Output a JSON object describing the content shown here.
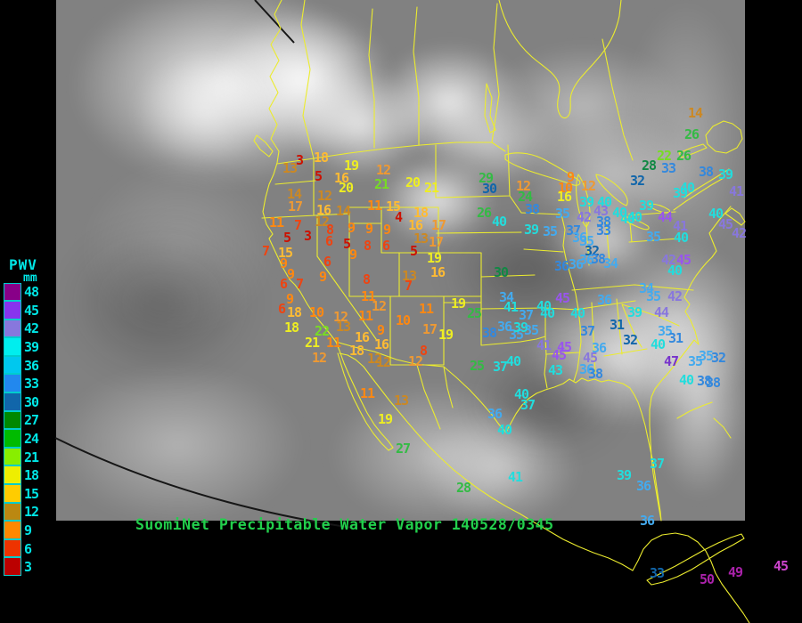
{
  "header": {
    "title": "SuomiNet Precipitable Water Vapor 140528/0345",
    "title_color": "#22cf4c"
  },
  "legend": {
    "title": "PWV",
    "unit": "mm",
    "label_color": "#00e6e6",
    "entries": [
      {
        "value": "48",
        "color": "#880088"
      },
      {
        "value": "45",
        "color": "#8833ee"
      },
      {
        "value": "42",
        "color": "#8877dd"
      },
      {
        "value": "39",
        "color": "#00eeee"
      },
      {
        "value": "36",
        "color": "#00c8ee"
      },
      {
        "value": "33",
        "color": "#2288ee"
      },
      {
        "value": "30",
        "color": "#1166aa"
      },
      {
        "value": "27",
        "color": "#008800"
      },
      {
        "value": "24",
        "color": "#00bb00"
      },
      {
        "value": "21",
        "color": "#88ee00"
      },
      {
        "value": "18",
        "color": "#eeee00"
      },
      {
        "value": "15",
        "color": "#ffcc00"
      },
      {
        "value": "12",
        "color": "#bb8811"
      },
      {
        "value": "9",
        "color": "#ff8800"
      },
      {
        "value": "6",
        "color": "#ee3300"
      },
      {
        "value": "3",
        "color": "#bb0000"
      }
    ]
  },
  "map": {
    "palette": {
      "R1": "#cc1100",
      "R2": "#ee4411",
      "O1": "#ff8811",
      "O2": "#ee9933",
      "O3": "#cc8822",
      "Y1": "#eeee22",
      "Y2": "#ffbb33",
      "G1": "#118844",
      "G2": "#33bb44",
      "G3": "#77dd22",
      "B1": "#44aaee",
      "B2": "#3388dd",
      "B3": "#1166aa",
      "C1": "#22dddd",
      "P1": "#9955ee",
      "P2": "#8877dd",
      "P3": "#7733cc",
      "M1": "#aa22aa",
      "M2": "#cc44cc"
    },
    "stations": [
      [
        3,
        336,
        181,
        "R1"
      ],
      [
        13,
        325,
        190,
        "O3"
      ],
      [
        18,
        360,
        178,
        "Y2"
      ],
      [
        5,
        357,
        199,
        "R1"
      ],
      [
        19,
        394,
        187,
        "Y1"
      ],
      [
        16,
        383,
        201,
        "Y2"
      ],
      [
        20,
        388,
        212,
        "Y1"
      ],
      [
        12,
        430,
        192,
        "O2"
      ],
      [
        21,
        428,
        208,
        "G3"
      ],
      [
        20,
        463,
        206,
        "Y1"
      ],
      [
        21,
        484,
        212,
        "Y1"
      ],
      [
        14,
        330,
        219,
        "O3"
      ],
      [
        17,
        331,
        233,
        "O2"
      ],
      [
        12,
        364,
        221,
        "O3"
      ],
      [
        16,
        363,
        237,
        "Y2"
      ],
      [
        14,
        385,
        238,
        "O3"
      ],
      [
        11,
        420,
        232,
        "O1"
      ],
      [
        15,
        441,
        233,
        "Y2"
      ],
      [
        18,
        472,
        240,
        "Y2"
      ],
      [
        4,
        447,
        245,
        "R1"
      ],
      [
        16,
        466,
        254,
        "Y2"
      ],
      [
        17,
        492,
        254,
        "O2"
      ],
      [
        13,
        472,
        269,
        "O3"
      ],
      [
        17,
        489,
        273,
        "O2"
      ],
      [
        5,
        464,
        283,
        "R1"
      ],
      [
        19,
        487,
        291,
        "Y1"
      ],
      [
        16,
        491,
        307,
        "Y2"
      ],
      [
        13,
        459,
        311,
        "O3"
      ],
      [
        7,
        458,
        322,
        "R2"
      ],
      [
        12,
        361,
        250,
        "O3"
      ],
      [
        11,
        310,
        251,
        "O1"
      ],
      [
        7,
        334,
        254,
        "R2"
      ],
      [
        8,
        370,
        259,
        "R2"
      ],
      [
        9,
        394,
        257,
        "O1"
      ],
      [
        9,
        414,
        258,
        "O1"
      ],
      [
        9,
        434,
        259,
        "O1"
      ],
      [
        5,
        322,
        268,
        "R1"
      ],
      [
        3,
        345,
        266,
        "R1"
      ],
      [
        6,
        369,
        272,
        "R2"
      ],
      [
        5,
        389,
        275,
        "R1"
      ],
      [
        8,
        412,
        277,
        "R2"
      ],
      [
        6,
        433,
        277,
        "R2"
      ],
      [
        7,
        298,
        283,
        "R2"
      ],
      [
        15,
        320,
        285,
        "Y2"
      ],
      [
        9,
        318,
        297,
        "O1"
      ],
      [
        9,
        326,
        309,
        "O1"
      ],
      [
        6,
        318,
        320,
        "R2"
      ],
      [
        7,
        336,
        320,
        "R2"
      ],
      [
        9,
        325,
        337,
        "O1"
      ],
      [
        6,
        316,
        348,
        "R2"
      ],
      [
        6,
        367,
        295,
        "R2"
      ],
      [
        9,
        362,
        312,
        "O1"
      ],
      [
        9,
        396,
        287,
        "O1"
      ],
      [
        8,
        411,
        315,
        "R2"
      ],
      [
        18,
        330,
        352,
        "Y2"
      ],
      [
        10,
        355,
        352,
        "O1"
      ],
      [
        18,
        327,
        369,
        "Y1"
      ],
      [
        22,
        361,
        373,
        "G3"
      ],
      [
        21,
        350,
        386,
        "Y1"
      ],
      [
        11,
        374,
        386,
        "O1"
      ],
      [
        12,
        358,
        403,
        "O2"
      ],
      [
        12,
        382,
        357,
        "O2"
      ],
      [
        13,
        385,
        368,
        "O3"
      ],
      [
        16,
        406,
        380,
        "Y2"
      ],
      [
        9,
        427,
        372,
        "O1"
      ],
      [
        16,
        428,
        388,
        "Y2"
      ],
      [
        18,
        400,
        395,
        "Y2"
      ],
      [
        12,
        420,
        404,
        "O3"
      ],
      [
        10,
        452,
        361,
        "O1"
      ],
      [
        11,
        413,
        334,
        "O1"
      ],
      [
        12,
        425,
        345,
        "O2"
      ],
      [
        11,
        410,
        356,
        "O1"
      ],
      [
        11,
        478,
        348,
        "O1"
      ],
      [
        17,
        482,
        371,
        "O2"
      ],
      [
        19,
        500,
        377,
        "Y1"
      ],
      [
        8,
        475,
        395,
        "R2"
      ],
      [
        12,
        466,
        407,
        "O2"
      ],
      [
        12,
        430,
        408,
        "O3"
      ],
      [
        11,
        412,
        443,
        "O1"
      ],
      [
        13,
        450,
        451,
        "O3"
      ],
      [
        19,
        432,
        472,
        "Y1"
      ],
      [
        27,
        452,
        505,
        "G2"
      ],
      [
        28,
        520,
        549,
        "G2"
      ],
      [
        19,
        514,
        342,
        "Y1"
      ],
      [
        25,
        532,
        353,
        "G2"
      ],
      [
        25,
        535,
        412,
        "G2"
      ],
      [
        41,
        578,
        537,
        "C1"
      ],
      [
        26,
        543,
        240,
        "G2"
      ],
      [
        40,
        560,
        250,
        "C1"
      ],
      [
        29,
        545,
        201,
        "G2"
      ],
      [
        30,
        549,
        213,
        "B3"
      ],
      [
        30,
        562,
        307,
        "G1"
      ],
      [
        34,
        568,
        335,
        "B1"
      ],
      [
        41,
        573,
        346,
        "C1"
      ],
      [
        37,
        590,
        355,
        "B1"
      ],
      [
        40,
        610,
        345,
        "C1"
      ],
      [
        45,
        631,
        336,
        "P1"
      ],
      [
        40,
        614,
        353,
        "C1"
      ],
      [
        36,
        566,
        368,
        "B1"
      ],
      [
        38,
        549,
        375,
        "B2"
      ],
      [
        35,
        579,
        377,
        "B1"
      ],
      [
        39,
        584,
        369,
        "C1"
      ],
      [
        35,
        596,
        372,
        "B1"
      ],
      [
        37,
        561,
        413,
        "C1"
      ],
      [
        40,
        576,
        407,
        "C1"
      ],
      [
        40,
        585,
        444,
        "C1"
      ],
      [
        37,
        592,
        456,
        "C1"
      ],
      [
        36,
        555,
        466,
        "B1"
      ],
      [
        40,
        566,
        484,
        "C1"
      ],
      [
        12,
        587,
        210,
        "O2"
      ],
      [
        24,
        589,
        222,
        "G2"
      ],
      [
        38,
        597,
        236,
        "B2"
      ],
      [
        39,
        596,
        259,
        "C1"
      ],
      [
        35,
        617,
        261,
        "B1"
      ],
      [
        35,
        631,
        241,
        "B1"
      ],
      [
        9,
        640,
        200,
        "O1"
      ],
      [
        10,
        634,
        212,
        "O1"
      ],
      [
        16,
        633,
        222,
        "Y1"
      ],
      [
        12,
        660,
        210,
        "O2"
      ],
      [
        39,
        658,
        228,
        "C1"
      ],
      [
        40,
        678,
        228,
        "C1"
      ],
      [
        42,
        655,
        245,
        "P2"
      ],
      [
        43,
        674,
        238,
        "P2"
      ],
      [
        37,
        643,
        260,
        "B2"
      ],
      [
        36,
        650,
        268,
        "B1"
      ],
      [
        35,
        658,
        272,
        "B1"
      ],
      [
        32,
        664,
        283,
        "B3"
      ],
      [
        36,
        646,
        298,
        "B1"
      ],
      [
        36,
        658,
        293,
        "B1"
      ],
      [
        38,
        671,
        292,
        "B2"
      ],
      [
        34,
        685,
        297,
        "B1"
      ],
      [
        36,
        630,
        300,
        "B2"
      ],
      [
        28,
        728,
        187,
        "G1"
      ],
      [
        33,
        750,
        190,
        "B2"
      ],
      [
        32,
        715,
        204,
        "B3"
      ],
      [
        22,
        745,
        176,
        "G3"
      ],
      [
        26,
        767,
        176,
        "G2"
      ],
      [
        26,
        776,
        152,
        "G2"
      ],
      [
        14,
        780,
        128,
        "O3"
      ],
      [
        40,
        771,
        212,
        "C1"
      ],
      [
        39,
        763,
        218,
        "C1"
      ],
      [
        39,
        725,
        232,
        "C1"
      ],
      [
        40,
        712,
        245,
        "C1"
      ],
      [
        44,
        746,
        245,
        "P1"
      ],
      [
        41,
        763,
        255,
        "P2"
      ],
      [
        35,
        733,
        267,
        "B1"
      ],
      [
        40,
        764,
        268,
        "C1"
      ],
      [
        42,
        750,
        293,
        "P2"
      ],
      [
        45,
        767,
        293,
        "P1"
      ],
      [
        40,
        757,
        305,
        "C1"
      ],
      [
        40,
        695,
        240,
        "C1"
      ],
      [
        38,
        677,
        250,
        "B2"
      ],
      [
        33,
        677,
        260,
        "B2"
      ],
      [
        40,
        704,
        247,
        "C1"
      ],
      [
        38,
        792,
        194,
        "B2"
      ],
      [
        39,
        814,
        197,
        "C1"
      ],
      [
        41,
        826,
        216,
        "P2"
      ],
      [
        45,
        814,
        253,
        "P2"
      ],
      [
        42,
        829,
        263,
        "P2"
      ],
      [
        40,
        803,
        241,
        "C1"
      ],
      [
        36,
        678,
        338,
        "B1"
      ],
      [
        34,
        725,
        325,
        "B1"
      ],
      [
        35,
        733,
        334,
        "B1"
      ],
      [
        42,
        757,
        334,
        "P2"
      ],
      [
        39,
        712,
        352,
        "C1"
      ],
      [
        44,
        742,
        352,
        "P2"
      ],
      [
        31,
        692,
        366,
        "B3"
      ],
      [
        32,
        707,
        383,
        "B3"
      ],
      [
        37,
        659,
        373,
        "B2"
      ],
      [
        35,
        746,
        373,
        "B1"
      ],
      [
        31,
        758,
        381,
        "B2"
      ],
      [
        40,
        738,
        388,
        "C1"
      ],
      [
        41,
        610,
        389,
        "P2"
      ],
      [
        45,
        633,
        391,
        "P1"
      ],
      [
        45,
        627,
        400,
        "P1"
      ],
      [
        43,
        623,
        417,
        "C1"
      ],
      [
        45,
        662,
        403,
        "P2"
      ],
      [
        36,
        658,
        416,
        "B1"
      ],
      [
        38,
        668,
        421,
        "B2"
      ],
      [
        36,
        672,
        392,
        "B1"
      ],
      [
        47,
        753,
        407,
        "P3"
      ],
      [
        35,
        780,
        407,
        "B1"
      ],
      [
        40,
        770,
        428,
        "C1"
      ],
      [
        38,
        790,
        429,
        "B2"
      ],
      [
        40,
        648,
        353,
        "C1"
      ],
      [
        35,
        792,
        401,
        "B1"
      ],
      [
        32,
        806,
        403,
        "B2"
      ],
      [
        38,
        800,
        431,
        "B2"
      ],
      [
        37,
        737,
        522,
        "C1"
      ],
      [
        39,
        700,
        535,
        "C1"
      ],
      [
        36,
        722,
        547,
        "B1"
      ],
      [
        36,
        726,
        586,
        "B1"
      ],
      [
        33,
        737,
        645,
        "B3"
      ],
      [
        50,
        793,
        652,
        "M1"
      ],
      [
        49,
        825,
        644,
        "M1"
      ],
      [
        45,
        876,
        637,
        "M2"
      ]
    ]
  }
}
